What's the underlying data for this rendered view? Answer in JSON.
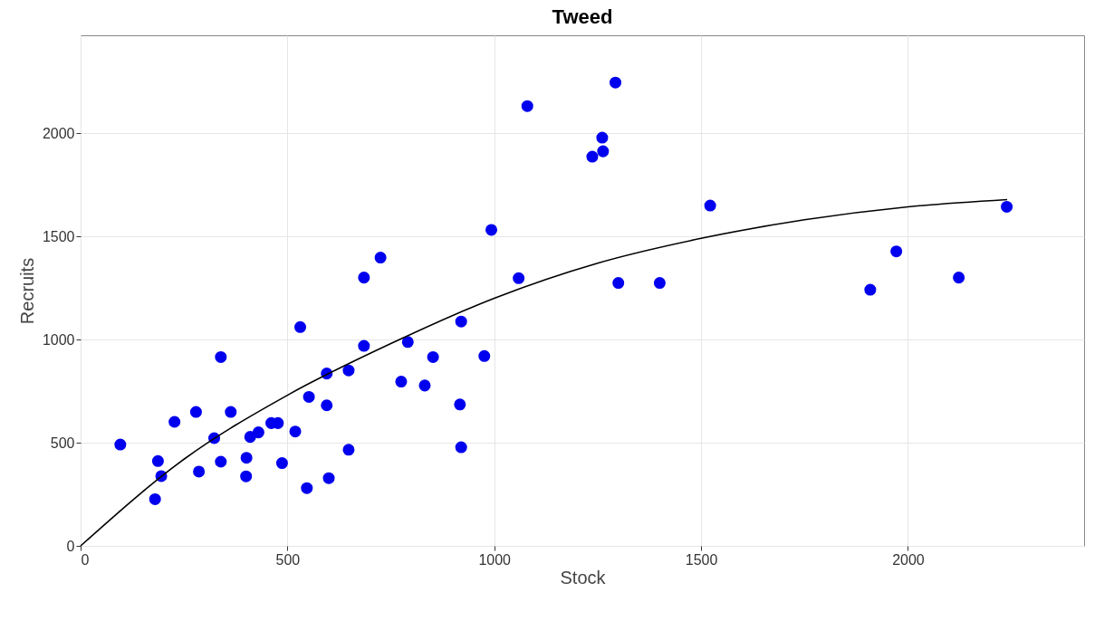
{
  "chart_data": {
    "type": "scatter",
    "title": "Tweed",
    "xlabel": "Stock",
    "ylabel": "Recruits",
    "xlim": [
      0,
      2426
    ],
    "ylim": [
      0,
      2474
    ],
    "xticks": [
      0,
      500,
      1000,
      1500,
      2000
    ],
    "yticks": [
      0,
      500,
      1000,
      1500,
      2000
    ],
    "grid": true,
    "marker": "circle",
    "series": [
      {
        "color": "#0000ee",
        "x": [
          96,
          187,
          195,
          180,
          227,
          279,
          323,
          339,
          339,
          286,
          363,
          401,
          400,
          410,
          430,
          461,
          477,
          487,
          519,
          531,
          547,
          552,
          595,
          595,
          600,
          648,
          648,
          685,
          685,
          725,
          775,
          791,
          832,
          852,
          993,
          1059,
          920,
          976,
          917,
          920,
          1300,
          1400,
          2239,
          1972,
          1909,
          2123,
          1522,
          1293,
          1080,
          1261,
          1263,
          1237
        ],
        "values": [
          491,
          411,
          338,
          226,
          601,
          649,
          522,
          915,
          408,
          360,
          649,
          427,
          337,
          528,
          550,
          595,
          595,
          401,
          554,
          1060,
          280,
          722,
          835,
          681,
          328,
          850,
          466,
          969,
          1300,
          1397,
          796,
          988,
          777,
          915,
          1531,
          1297,
          1087,
          920,
          685,
          478,
          1274,
          1274,
          1643,
          1427,
          1241,
          1300,
          1649,
          2245,
          2131,
          1978,
          1912,
          1886
        ]
      },
      {
        "type": "line",
        "color": "#000000",
        "marker": "none",
        "x": [
          0,
          250,
          500,
          750,
          1000,
          1250,
          1500,
          1750,
          2000,
          2240
        ],
        "values": [
          0,
          420,
          730,
          980,
          1200,
          1370,
          1490,
          1580,
          1643,
          1678
        ]
      }
    ]
  }
}
